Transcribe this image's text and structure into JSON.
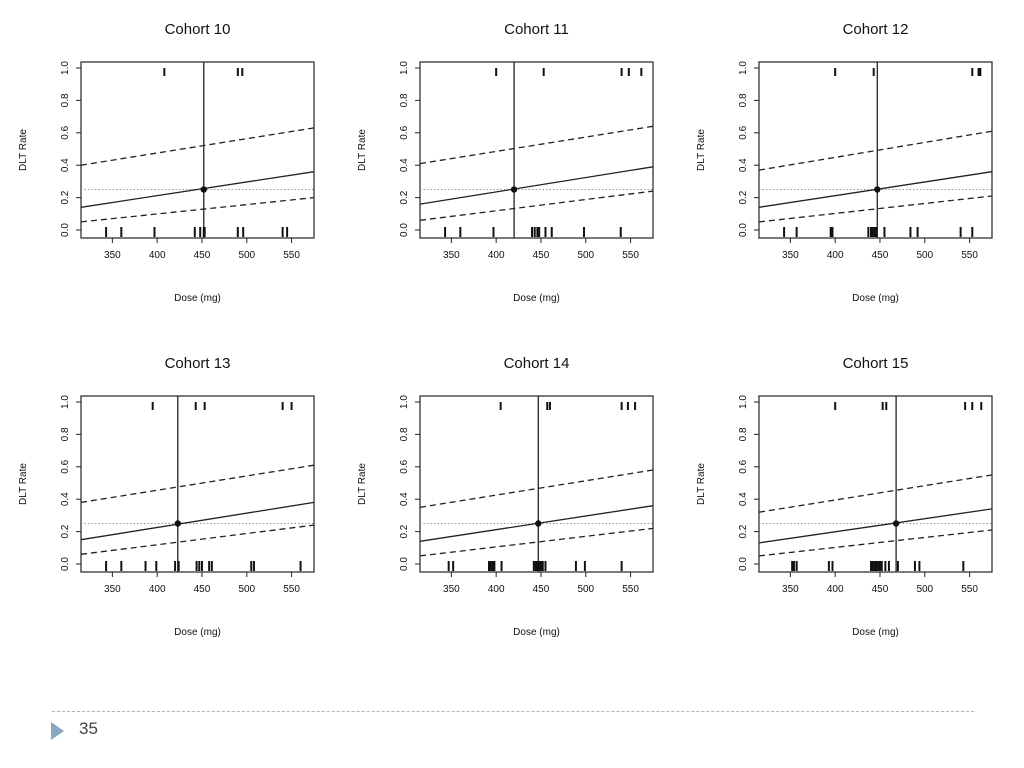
{
  "slide": {
    "page_number": "35",
    "accent_color": "#8aa7c4"
  },
  "chart_data": [
    {
      "type": "line",
      "title": "Cohort 10",
      "xlabel": "Dose (mg)",
      "ylabel": "DLT Rate",
      "xlim": [
        315,
        575
      ],
      "ylim": [
        0,
        1
      ],
      "xticks": [
        350,
        400,
        450,
        500,
        550
      ],
      "yticks": [
        0.0,
        0.2,
        0.4,
        0.6,
        0.8,
        1.0
      ],
      "target_rate": 0.25,
      "recommended_dose": 452,
      "series": [
        {
          "style": "solid",
          "x": [
            315,
            575
          ],
          "y": [
            0.14,
            0.36
          ]
        },
        {
          "style": "dashed",
          "x": [
            315,
            575
          ],
          "y": [
            0.4,
            0.63
          ]
        },
        {
          "style": "dashed",
          "x": [
            315,
            575
          ],
          "y": [
            0.05,
            0.2
          ]
        }
      ],
      "rug_top": [
        408,
        490,
        495
      ],
      "rug_bottom": [
        343,
        360,
        397,
        442,
        448,
        452,
        453,
        490,
        496,
        540,
        545
      ]
    },
    {
      "type": "line",
      "title": "Cohort 11",
      "xlabel": "Dose (mg)",
      "ylabel": "DLT Rate",
      "xlim": [
        315,
        575
      ],
      "ylim": [
        0,
        1
      ],
      "xticks": [
        350,
        400,
        450,
        500,
        550
      ],
      "yticks": [
        0.0,
        0.2,
        0.4,
        0.6,
        0.8,
        1.0
      ],
      "target_rate": 0.25,
      "recommended_dose": 420,
      "series": [
        {
          "style": "solid",
          "x": [
            315,
            575
          ],
          "y": [
            0.16,
            0.39
          ]
        },
        {
          "style": "dashed",
          "x": [
            315,
            575
          ],
          "y": [
            0.41,
            0.64
          ]
        },
        {
          "style": "dashed",
          "x": [
            315,
            575
          ],
          "y": [
            0.06,
            0.24
          ]
        }
      ],
      "rug_top": [
        400,
        453,
        540,
        548,
        562
      ],
      "rug_bottom": [
        343,
        360,
        397,
        440,
        443,
        446,
        448,
        455,
        462,
        498,
        539
      ]
    },
    {
      "type": "line",
      "title": "Cohort 12",
      "xlabel": "Dose (mg)",
      "ylabel": "DLT Rate",
      "xlim": [
        315,
        575
      ],
      "ylim": [
        0,
        1
      ],
      "xticks": [
        350,
        400,
        450,
        500,
        550
      ],
      "yticks": [
        0.0,
        0.2,
        0.4,
        0.6,
        0.8,
        1.0
      ],
      "target_rate": 0.25,
      "recommended_dose": 447,
      "series": [
        {
          "style": "solid",
          "x": [
            315,
            575
          ],
          "y": [
            0.14,
            0.36
          ]
        },
        {
          "style": "dashed",
          "x": [
            315,
            575
          ],
          "y": [
            0.37,
            0.61
          ]
        },
        {
          "style": "dashed",
          "x": [
            315,
            575
          ],
          "y": [
            0.05,
            0.21
          ]
        }
      ],
      "rug_top": [
        400,
        443,
        553,
        560,
        562
      ],
      "rug_bottom": [
        343,
        357,
        395,
        397,
        437,
        440,
        442,
        444,
        446,
        455,
        484,
        492,
        540,
        553
      ]
    },
    {
      "type": "line",
      "title": "Cohort 13",
      "xlabel": "Dose (mg)",
      "ylabel": "DLT Rate",
      "xlim": [
        315,
        575
      ],
      "ylim": [
        0,
        1
      ],
      "xticks": [
        350,
        400,
        450,
        500,
        550
      ],
      "yticks": [
        0.0,
        0.2,
        0.4,
        0.6,
        0.8,
        1.0
      ],
      "target_rate": 0.25,
      "recommended_dose": 423,
      "series": [
        {
          "style": "solid",
          "x": [
            315,
            575
          ],
          "y": [
            0.15,
            0.38
          ]
        },
        {
          "style": "dashed",
          "x": [
            315,
            575
          ],
          "y": [
            0.38,
            0.61
          ]
        },
        {
          "style": "dashed",
          "x": [
            315,
            575
          ],
          "y": [
            0.06,
            0.24
          ]
        }
      ],
      "rug_top": [
        395,
        443,
        453,
        540,
        550
      ],
      "rug_bottom": [
        343,
        360,
        387,
        399,
        420,
        424,
        444,
        447,
        450,
        458,
        461,
        505,
        508,
        560
      ]
    },
    {
      "type": "line",
      "title": "Cohort 14",
      "xlabel": "Dose (mg)",
      "ylabel": "DLT Rate",
      "xlim": [
        315,
        575
      ],
      "ylim": [
        0,
        1
      ],
      "xticks": [
        350,
        400,
        450,
        500,
        550
      ],
      "yticks": [
        0.0,
        0.2,
        0.4,
        0.6,
        0.8,
        1.0
      ],
      "target_rate": 0.25,
      "recommended_dose": 447,
      "series": [
        {
          "style": "solid",
          "x": [
            315,
            575
          ],
          "y": [
            0.14,
            0.36
          ]
        },
        {
          "style": "dashed",
          "x": [
            315,
            575
          ],
          "y": [
            0.35,
            0.58
          ]
        },
        {
          "style": "dashed",
          "x": [
            315,
            575
          ],
          "y": [
            0.05,
            0.22
          ]
        }
      ],
      "rug_top": [
        405,
        457,
        460,
        540,
        547,
        555
      ],
      "rug_bottom": [
        347,
        352,
        392,
        394,
        396,
        398,
        406,
        442,
        444,
        446,
        448,
        450,
        452,
        455,
        489,
        499,
        540
      ]
    },
    {
      "type": "line",
      "title": "Cohort 15",
      "xlabel": "Dose (mg)",
      "ylabel": "DLT Rate",
      "xlim": [
        315,
        575
      ],
      "ylim": [
        0,
        1
      ],
      "xticks": [
        350,
        400,
        450,
        500,
        550
      ],
      "yticks": [
        0.0,
        0.2,
        0.4,
        0.6,
        0.8,
        1.0
      ],
      "target_rate": 0.25,
      "recommended_dose": 468,
      "series": [
        {
          "style": "solid",
          "x": [
            315,
            575
          ],
          "y": [
            0.13,
            0.34
          ]
        },
        {
          "style": "dashed",
          "x": [
            315,
            575
          ],
          "y": [
            0.32,
            0.55
          ]
        },
        {
          "style": "dashed",
          "x": [
            315,
            575
          ],
          "y": [
            0.05,
            0.21
          ]
        }
      ],
      "rug_top": [
        400,
        453,
        457,
        545,
        553,
        563
      ],
      "rug_bottom": [
        352,
        354,
        357,
        393,
        397,
        440,
        442,
        444,
        446,
        448,
        450,
        452,
        456,
        460,
        470,
        489,
        494,
        543
      ]
    }
  ]
}
